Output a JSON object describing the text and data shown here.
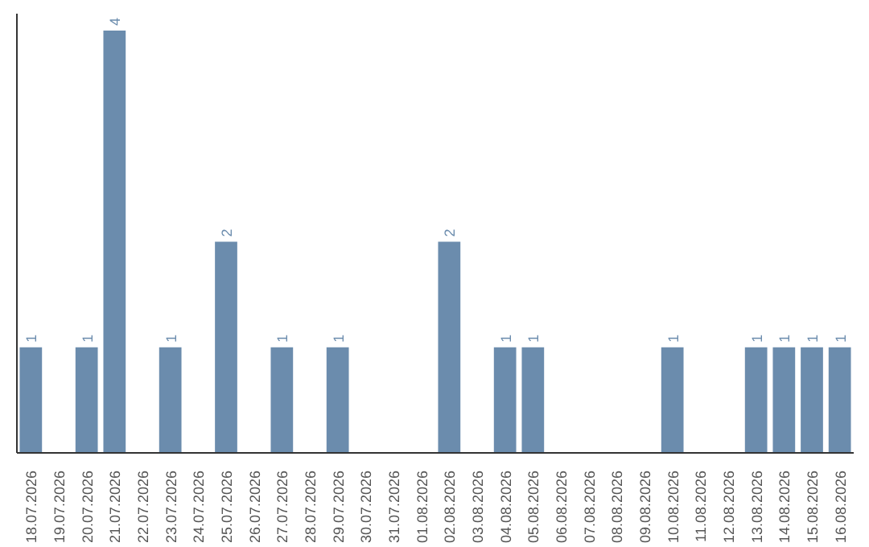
{
  "chart_data": {
    "type": "bar",
    "categories": [
      "18.07.2026",
      "19.07.2026",
      "20.07.2026",
      "21.07.2026",
      "22.07.2026",
      "23.07.2026",
      "24.07.2026",
      "25.07.2026",
      "26.07.2026",
      "27.07.2026",
      "28.07.2026",
      "29.07.2026",
      "30.07.2026",
      "31.07.2026",
      "01.08.2026",
      "02.08.2026",
      "03.08.2026",
      "04.08.2026",
      "05.08.2026",
      "06.08.2026",
      "07.08.2026",
      "08.08.2026",
      "09.08.2026",
      "10.08.2026",
      "11.08.2026",
      "12.08.2026",
      "13.08.2026",
      "14.08.2026",
      "15.08.2026",
      "16.08.2026"
    ],
    "series": [
      {
        "color": "#6b8cad",
        "values": [
          1,
          0,
          1,
          4,
          0,
          1,
          0,
          2,
          0,
          1,
          0,
          1,
          0,
          0,
          0,
          2,
          0,
          1,
          1,
          0,
          0,
          0,
          0,
          1,
          0,
          0,
          1,
          1,
          1,
          1
        ],
        "value_labels": [
          "1",
          null,
          "1",
          "4",
          null,
          "1",
          null,
          "2",
          null,
          "1",
          null,
          "1",
          null,
          null,
          null,
          "2",
          null,
          "1",
          "1",
          null,
          null,
          null,
          null,
          "1",
          null,
          null,
          "1",
          "1",
          "1",
          "1"
        ]
      }
    ],
    "tick_labels": "x",
    "grid": false
  }
}
